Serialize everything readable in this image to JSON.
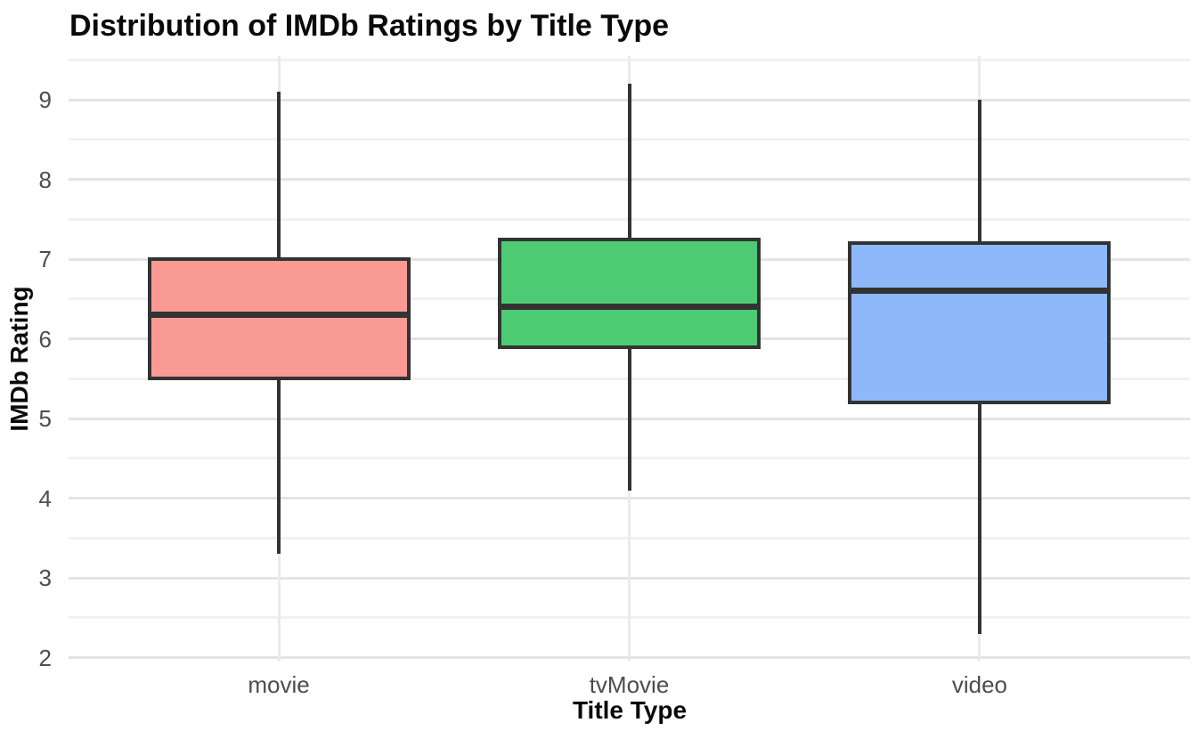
{
  "chart_data": {
    "type": "boxplot",
    "title": "Distribution of IMDb Ratings by Title Type",
    "xlabel": "Title Type",
    "ylabel": "IMDb Rating",
    "categories": [
      "movie",
      "tvMovie",
      "video"
    ],
    "series": [
      {
        "name": "movie",
        "min": 3.3,
        "q1": 5.5,
        "median": 6.3,
        "q3": 7.0,
        "max": 9.1,
        "fill": "#f99b94"
      },
      {
        "name": "tvMovie",
        "min": 4.1,
        "q1": 5.9,
        "median": 6.4,
        "q3": 7.25,
        "max": 9.2,
        "fill": "#4dcb74"
      },
      {
        "name": "video",
        "min": 2.3,
        "q1": 5.2,
        "median": 6.6,
        "q3": 7.2,
        "max": 9.0,
        "fill": "#8db9fb"
      }
    ],
    "y_ticks": [
      2,
      3,
      4,
      5,
      6,
      7,
      8,
      9
    ],
    "ylim": [
      1.95,
      9.55
    ],
    "grid": "major-and-minor",
    "legend_position": "none"
  },
  "colors": {
    "stroke": "#333333",
    "grid_major": "#e4e4e4",
    "grid_minor": "#f1f1f1",
    "grid_vertical": "#ebebeb",
    "tick_text": "#4d4d4d",
    "title_text": "#0a0a0a",
    "background": "#ffffff"
  }
}
